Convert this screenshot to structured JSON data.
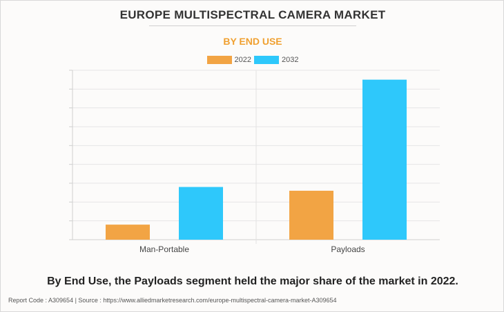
{
  "title": "EUROPE MULTISPECTRAL CAMERA MARKET",
  "subtitle": "BY END USE",
  "caption": "By End Use, the Payloads segment held the major share of the market in 2022.",
  "footer": "Report Code : A309654  |  Source : https://www.alliedmarketresearch.com/europe-multispectral-camera-market-A309654",
  "colors": {
    "series_2022": "#f2a444",
    "series_2032": "#2ec8fb",
    "title": "#333333",
    "subtitle": "#f0a030",
    "grid": "#e6e6e6"
  },
  "chart_data": {
    "type": "bar",
    "categories": [
      "Man-Portable",
      "Payloads"
    ],
    "series": [
      {
        "name": "2022",
        "values": [
          0.8,
          2.6
        ]
      },
      {
        "name": "2032",
        "values": [
          2.8,
          8.5
        ]
      }
    ],
    "xlabel": "",
    "ylabel": "",
    "ylim": [
      0,
      9
    ],
    "grid": true,
    "y_tick_labels_shown": false,
    "legend_position": "top-center"
  }
}
